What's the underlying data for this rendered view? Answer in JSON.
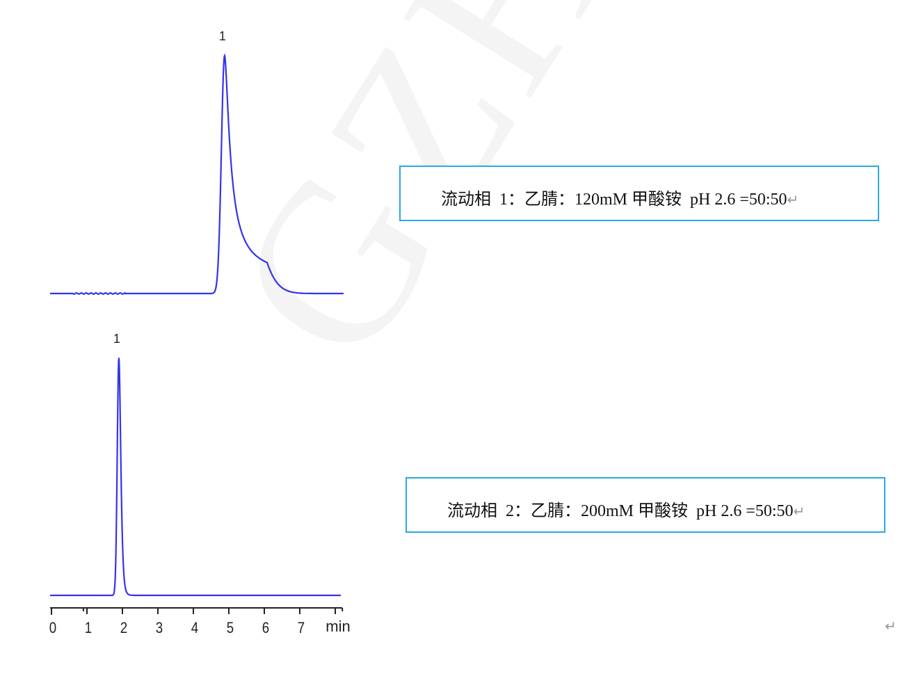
{
  "watermark": "GZHM",
  "chart_data": [
    {
      "type": "line",
      "title": "",
      "xlabel": "",
      "ylabel": "",
      "color": "#3333ee",
      "xlim": [
        0,
        8.2
      ],
      "peaks": [
        {
          "label": "1",
          "retention_time": 4.88,
          "relative_height": 1.0
        }
      ]
    },
    {
      "type": "line",
      "title": "",
      "xlabel": "",
      "ylabel": "",
      "color": "#3333ee",
      "xlim": [
        0,
        8.2
      ],
      "x_ticks": [
        "0",
        "1",
        "2",
        "3",
        "4",
        "5",
        "6",
        "7"
      ],
      "x_unit": "min",
      "peaks": [
        {
          "label": "1",
          "retention_time": 1.9,
          "relative_height": 1.0
        }
      ]
    }
  ],
  "annotations": {
    "mobile_phase_1": "流动相  1：乙腈：120mM 甲酸铵  pH 2.6 =50:50",
    "mobile_phase_2": "流动相  2：乙腈：200mM 甲酸铵  pH 2.6 =50:50",
    "return_mark": "↵"
  }
}
